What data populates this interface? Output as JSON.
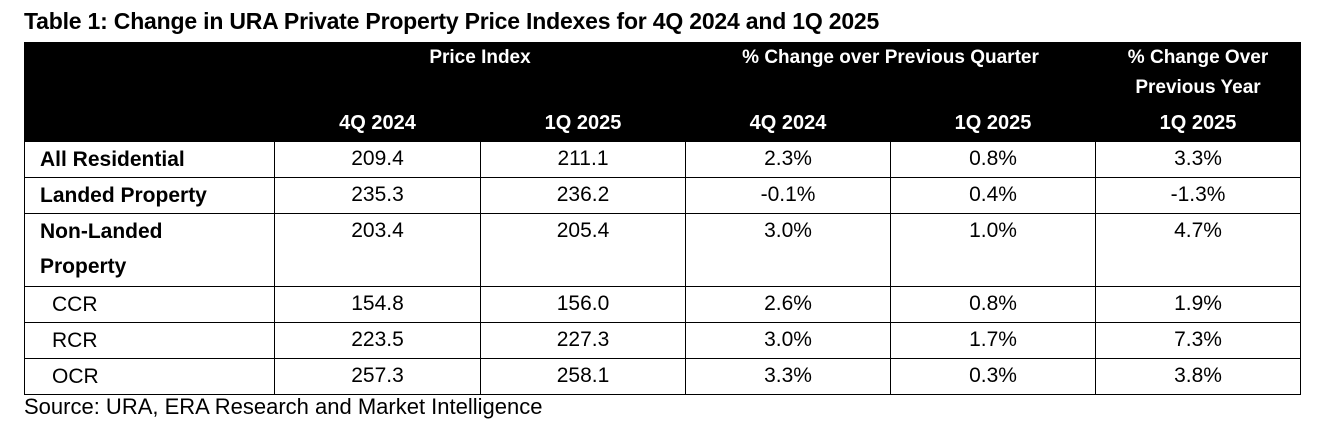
{
  "title": "Table 1: Change in URA Private Property Price Indexes for 4Q 2024 and 1Q 2025",
  "header": {
    "group1": "Price Index",
    "group2": "% Change over Previous Quarter",
    "group3_line1": "% Change Over",
    "group3_line2": "Previous Year",
    "sub": [
      "4Q 2024",
      "1Q 2025",
      "4Q 2024",
      "1Q 2025",
      "1Q 2025"
    ]
  },
  "rows": [
    {
      "label": "All Residential",
      "pi_4q2024": "209.4",
      "pi_1q2025": "211.1",
      "qoq_4q2024": "2.3%",
      "qoq_1q2025": "0.8%",
      "yoy_1q2025": "3.3%"
    },
    {
      "label": "Landed Property",
      "pi_4q2024": "235.3",
      "pi_1q2025": "236.2",
      "qoq_4q2024": "-0.1%",
      "qoq_1q2025": "0.4%",
      "yoy_1q2025": "-1.3%"
    },
    {
      "label_line1": "Non-Landed",
      "label_line2": "Property",
      "pi_4q2024": "203.4",
      "pi_1q2025": "205.4",
      "qoq_4q2024": "3.0%",
      "qoq_1q2025": "1.0%",
      "yoy_1q2025": "4.7%"
    },
    {
      "label": "CCR",
      "pi_4q2024": "154.8",
      "pi_1q2025": "156.0",
      "qoq_4q2024": "2.6%",
      "qoq_1q2025": "0.8%",
      "yoy_1q2025": "1.9%"
    },
    {
      "label": "RCR",
      "pi_4q2024": "223.5",
      "pi_1q2025": "227.3",
      "qoq_4q2024": "3.0%",
      "qoq_1q2025": "1.7%",
      "yoy_1q2025": "7.3%"
    },
    {
      "label": "OCR",
      "pi_4q2024": "257.3",
      "pi_1q2025": "258.1",
      "qoq_4q2024": "3.3%",
      "qoq_1q2025": "0.3%",
      "yoy_1q2025": "3.8%"
    }
  ],
  "source": "Source: URA, ERA Research and Market Intelligence"
}
